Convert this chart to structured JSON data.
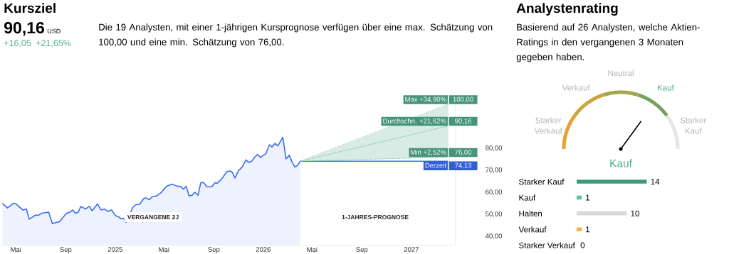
{
  "chart_data": [
    {
      "type": "other",
      "title": "Kursziel",
      "annotations": [
        "90,16",
        "USD",
        "+16,05",
        "+21,65%",
        "Die 19 Analysten, mit einer 1-jährigen Kursprognose verfügen über eine max. Schätzung von 100,00 und eine min. Schätzung von 76,00."
      ]
    },
    {
      "type": "line",
      "legend": "top right",
      "xlim": [
        "2024-03-23",
        "2027-04-20"
      ],
      "ylim": [
        36,
        103
      ],
      "xticks": [
        {
          "value": "2024-05-01",
          "label": "Mai"
        },
        {
          "value": "2024-09-01",
          "label": "Sep"
        },
        {
          "value": "2025-01-01",
          "label": "2025"
        },
        {
          "value": "2025-05-01",
          "label": "Mai"
        },
        {
          "value": "2025-09-01",
          "label": "Sep"
        },
        {
          "value": "2026-01-01",
          "label": "2026"
        },
        {
          "value": "2026-05-01",
          "label": "Mai"
        },
        {
          "value": "2026-09-01",
          "label": "Sep"
        },
        {
          "value": "2027-01-01",
          "label": "2027"
        }
      ],
      "yticks": [
        {
          "value": 40,
          "label": "40,00"
        },
        {
          "value": 50,
          "label": "50,00"
        },
        {
          "value": 60,
          "label": "60,00"
        },
        {
          "value": 70,
          "label": "70,00"
        },
        {
          "value": 80,
          "label": "80,00"
        }
      ],
      "annotations": [
        "VERGANGENE 2J",
        "1-JAHRES-PROGNOSE"
      ],
      "series": [
        {
          "type": "area",
          "color": "#3b6cf0",
          "x": [
            "2024-03-29",
            "2024-04-10",
            "2024-04-25",
            "2024-05-01",
            "2024-05-18",
            "2024-05-27",
            "2024-06-03",
            "2024-06-19",
            "2024-06-25",
            "2024-07-04",
            "2024-07-21",
            "2024-07-30",
            "2024-08-08",
            "2024-08-17",
            "2024-09-03",
            "2024-09-12",
            "2024-09-18",
            "2024-09-25",
            "2024-10-02",
            "2024-10-08",
            "2024-10-20",
            "2024-10-29",
            "2024-11-05",
            "2024-11-18",
            "2024-11-27",
            "2024-12-06",
            "2024-12-14",
            "2024-12-23",
            "2025-01-01",
            "2025-01-10",
            "2025-01-16",
            "2025-01-21",
            "2025-01-28",
            "2025-02-13",
            "2025-02-20",
            "2025-03-03",
            "2025-03-12",
            "2025-03-18",
            "2025-03-26",
            "2025-04-02",
            "2025-04-13",
            "2025-04-25",
            "2025-05-07",
            "2025-05-21",
            "2025-06-02",
            "2025-06-11",
            "2025-06-18",
            "2025-06-25",
            "2025-07-02",
            "2025-07-10",
            "2025-07-16",
            "2025-07-24",
            "2025-07-31",
            "2025-08-07",
            "2025-08-15",
            "2025-08-27",
            "2025-09-04",
            "2025-09-09",
            "2025-09-21",
            "2025-10-03",
            "2025-10-12",
            "2025-10-17",
            "2025-10-23",
            "2025-11-01",
            "2025-11-10",
            "2025-11-19",
            "2025-11-26",
            "2025-12-03",
            "2025-12-10",
            "2025-12-18",
            "2025-12-25",
            "2026-01-01",
            "2026-01-07",
            "2026-01-16",
            "2026-01-22",
            "2026-01-30",
            "2026-02-06",
            "2026-02-18",
            "2026-02-26",
            "2026-03-06",
            "2026-03-13",
            "2026-03-20",
            "2026-03-27",
            "2026-04-02"
          ],
          "values": [
            55.0,
            52.9,
            55.0,
            54.8,
            52.0,
            52.4,
            47.8,
            49.7,
            49.5,
            50.5,
            51.0,
            45.8,
            46.3,
            46.7,
            50.5,
            51.0,
            52.0,
            50.5,
            51.0,
            53.6,
            52.4,
            53.7,
            51.6,
            54.7,
            52.0,
            52.4,
            51.3,
            52.0,
            49.5,
            48.8,
            47.9,
            48.3,
            46.3,
            53.1,
            54.3,
            54.7,
            57.1,
            57.5,
            56.6,
            58.0,
            58.4,
            60.0,
            62.7,
            63.7,
            62.8,
            62.7,
            61.4,
            62.7,
            58.4,
            58.7,
            60.1,
            58.7,
            64.4,
            64.4,
            62.5,
            62.5,
            64.4,
            64.1,
            66.2,
            69.4,
            69.7,
            68.9,
            66.5,
            69.9,
            71.5,
            74.7,
            73.6,
            74.0,
            75.8,
            77.2,
            75.8,
            76.8,
            77.4,
            81.6,
            80.6,
            82.2,
            81.1,
            85.0,
            75.2,
            76.8,
            73.6,
            71.5,
            72.3,
            74.13
          ]
        },
        {
          "type": "line",
          "name": "Derzeit",
          "color": "#3b6cf0",
          "line_style": "solid",
          "x": [
            "2026-04-02",
            "2027-04-02"
          ],
          "values": [
            74.13,
            74.13
          ],
          "value_labels": [
            null,
            "74,13"
          ]
        },
        {
          "type": "line",
          "name": "Max +34,90%",
          "color": "#4fa88a",
          "line_style": "dotted",
          "x": [
            "2026-04-02",
            "2027-04-02"
          ],
          "values": [
            74.13,
            100
          ],
          "value_labels": [
            null,
            "100,00"
          ]
        },
        {
          "type": "line",
          "name": "Durchschn. +21,62%",
          "color": "#4fa88a",
          "line_style": "dotted",
          "x": [
            "2026-04-02",
            "2027-04-02"
          ],
          "values": [
            74.13,
            90.16
          ],
          "lower": [
            74.13,
            76
          ],
          "upper": [
            74.13,
            100
          ],
          "value_labels": [
            null,
            "90,16"
          ]
        },
        {
          "type": "line",
          "name": "Min +2,52%",
          "color": "#4fa88a",
          "line_style": "dotted",
          "x": [
            "2026-04-02",
            "2027-04-02"
          ],
          "values": [
            74.13,
            76
          ],
          "value_labels": [
            null,
            "76,00"
          ]
        }
      ]
    },
    {
      "type": "donut",
      "title": "Analystenrating",
      "subtitle": "Basierend auf 26 Analysten, welche Aktien-Ratings in den vergangenen 3 Monaten gegeben haben.",
      "categories": [
        "Starker Verkauf",
        "Verkauf",
        "Neutral",
        "Kauf",
        "Starker Kauf"
      ],
      "values": [
        20,
        20,
        20,
        20,
        20
      ],
      "colors": [
        "#e8a035",
        "#c9a63c",
        "#a3a84a",
        "#74a35f",
        "#e6e6e6"
      ],
      "needle": "Kauf"
    },
    {
      "type": "bar",
      "orientation": "horizontal",
      "categories": [
        "Starker Kauf",
        "Kauf",
        "Halten",
        "Verkauf",
        "Starker Verkauf"
      ],
      "values": [
        14,
        1,
        10,
        1,
        0
      ],
      "colors": [
        "#3d9a78",
        "#5cc0a8",
        "#d9d9d9",
        "#f5b041",
        "#d9d9d9"
      ],
      "data_labels": true,
      "tick_labels": "y"
    }
  ]
}
